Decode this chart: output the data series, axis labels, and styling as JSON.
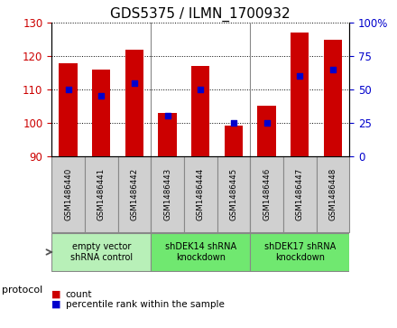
{
  "title": "GDS5375 / ILMN_1700932",
  "samples": [
    "GSM1486440",
    "GSM1486441",
    "GSM1486442",
    "GSM1486443",
    "GSM1486444",
    "GSM1486445",
    "GSM1486446",
    "GSM1486447",
    "GSM1486448"
  ],
  "counts": [
    118,
    116,
    122,
    103,
    117,
    99,
    105,
    127,
    125
  ],
  "percentiles": [
    50,
    45,
    55,
    30,
    50,
    25,
    25,
    60,
    65
  ],
  "ylim_left": [
    90,
    130
  ],
  "ylim_right": [
    0,
    100
  ],
  "yticks_left": [
    90,
    100,
    110,
    120,
    130
  ],
  "yticks_right": [
    0,
    25,
    50,
    75,
    100
  ],
  "bar_color": "#cc0000",
  "dot_color": "#0000cc",
  "bar_bottom": 90,
  "groups": [
    {
      "label": "empty vector\nshRNA control",
      "start": 0,
      "end": 3,
      "color": "#b8f0b8"
    },
    {
      "label": "shDEK14 shRNA\nknockdown",
      "start": 3,
      "end": 6,
      "color": "#70e870"
    },
    {
      "label": "shDEK17 shRNA\nknockdown",
      "start": 6,
      "end": 9,
      "color": "#70e870"
    }
  ],
  "tick_label_color_left": "#cc0000",
  "tick_label_color_right": "#0000cc",
  "title_fontsize": 11,
  "bar_width": 0.55,
  "sample_box_color": "#d0d0d0",
  "sample_box_edge": "#888888"
}
